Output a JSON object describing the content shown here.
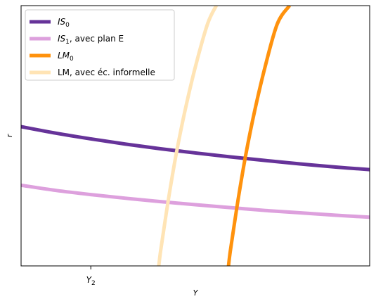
{
  "chart_data": {
    "type": "line",
    "xlabel": "Y",
    "ylabel": "r",
    "xlim": [
      0,
      10
    ],
    "ylim": [
      0,
      10
    ],
    "x_ticks": [
      {
        "value": 2,
        "label": "Y",
        "sub": "2"
      }
    ],
    "y_ticks": [],
    "grid": false,
    "legend_position": "top-left",
    "series": [
      {
        "name": "IS",
        "sub": "0",
        "name_suffix": "",
        "color": "#663399",
        "opacity": 1.0,
        "x": [
          0,
          1,
          2,
          3,
          4,
          5,
          6,
          7,
          8,
          9,
          10
        ],
        "y": [
          5.35,
          5.1,
          4.88,
          4.68,
          4.5,
          4.34,
          4.19,
          4.05,
          3.92,
          3.8,
          3.7
        ]
      },
      {
        "name": "IS",
        "sub": "1",
        "name_suffix": ", avec plan E",
        "color": "#dda0dd",
        "opacity": 1.0,
        "x": [
          0,
          1,
          2,
          3,
          4,
          5,
          6,
          7,
          8,
          9,
          10
        ],
        "y": [
          3.1,
          2.9,
          2.74,
          2.6,
          2.47,
          2.35,
          2.24,
          2.13,
          2.04,
          1.95,
          1.87
        ]
      },
      {
        "name": "LM",
        "sub": "0",
        "name_suffix": "",
        "color": "#ff8c00",
        "opacity": 0.95,
        "x": [
          5.95,
          6.0,
          6.1,
          6.25,
          6.45,
          6.7,
          7.0,
          7.35,
          7.7
        ],
        "y": [
          0,
          0.55,
          1.45,
          2.75,
          4.3,
          5.95,
          7.65,
          9.3,
          10.0
        ]
      },
      {
        "name": "LM, avec éc. informelle",
        "sub": "",
        "name_suffix": "",
        "color": "#ffe4b5",
        "opacity": 1.0,
        "x": [
          3.95,
          4.0,
          4.1,
          4.25,
          4.45,
          4.7,
          5.0,
          5.35,
          5.6
        ],
        "y": [
          0,
          0.55,
          1.45,
          2.75,
          4.3,
          5.95,
          7.65,
          9.3,
          10.0
        ]
      }
    ]
  }
}
